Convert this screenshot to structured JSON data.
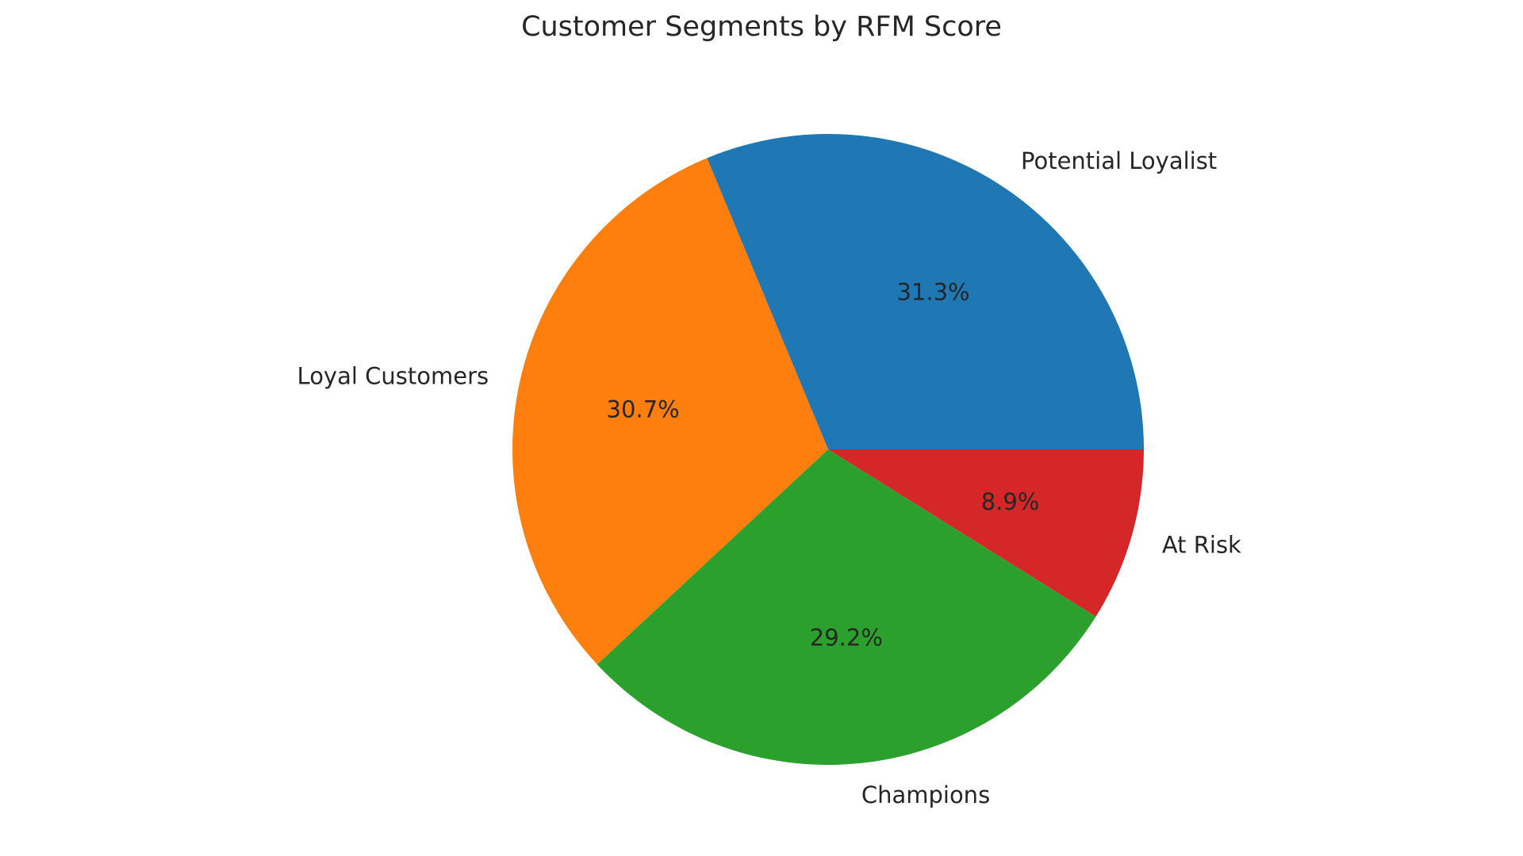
{
  "chart_data": {
    "type": "pie",
    "title": "Customer Segments by RFM Score",
    "start_angle_deg": 0,
    "direction": "counterclockwise",
    "slices": [
      {
        "label": "Potential Loyalist",
        "value": 31.3,
        "pct_label": "31.3%",
        "color": "#1f77b4"
      },
      {
        "label": "Loyal Customers",
        "value": 30.7,
        "pct_label": "30.7%",
        "color": "#ff7f0e"
      },
      {
        "label": "Champions",
        "value": 29.2,
        "pct_label": "29.2%",
        "color": "#2ca02c"
      },
      {
        "label": "At Risk",
        "value": 8.9,
        "pct_label": "8.9%",
        "color": "#d62728"
      }
    ]
  }
}
